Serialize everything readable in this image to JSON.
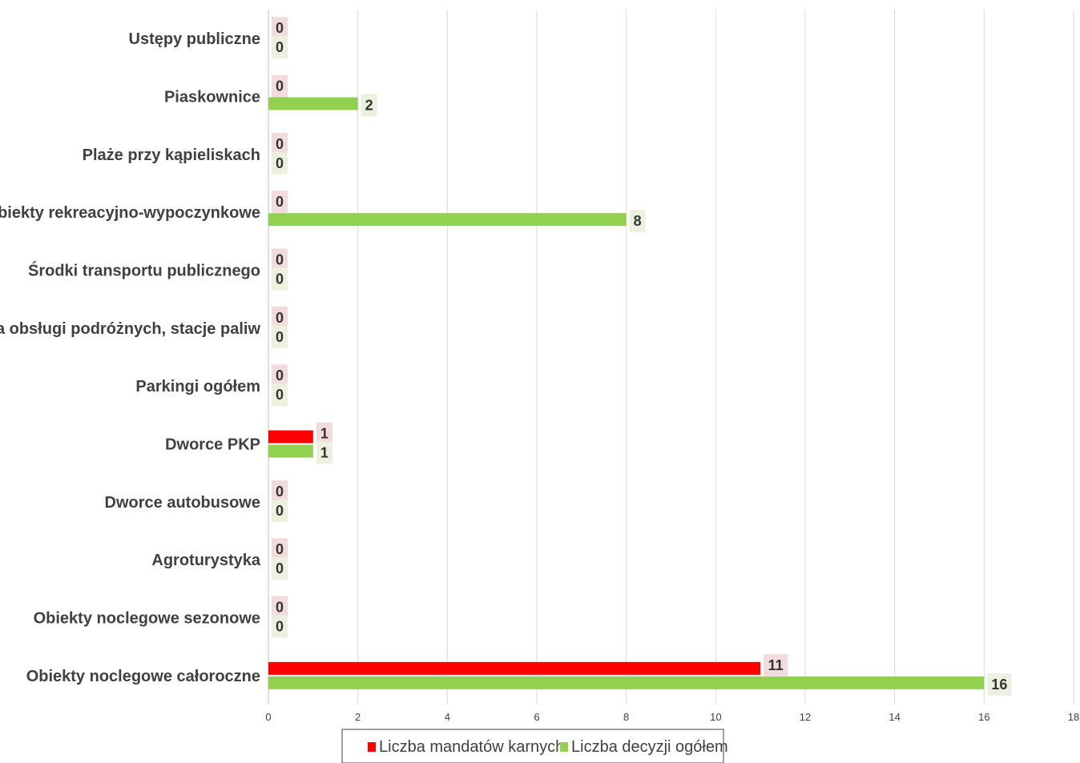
{
  "chart_data": {
    "type": "bar",
    "orientation": "horizontal",
    "categories": [
      "Ustępy publiczne",
      "Piaskownice",
      "Plaże przy kąpieliskach",
      "Obiekty rekreacyjno-wypoczynkowe",
      "Środki transportu publicznego",
      "Miejsca obsługi podróżnych, stacje paliw",
      "Parkingi ogółem",
      "Dworce PKP",
      "Dworce autobusowe",
      "Agroturystyka",
      "Obiekty noclegowe sezonowe",
      "Obiekty noclegowe całoroczne"
    ],
    "series": [
      {
        "name": "Liczba mandatów karnych",
        "color": "#ff0000",
        "label_bg": "#f2dcdb",
        "values": [
          0,
          0,
          0,
          0,
          0,
          0,
          0,
          1,
          0,
          0,
          0,
          11
        ]
      },
      {
        "name": "Liczba decyzji ogółem",
        "color": "#92d050",
        "label_bg": "#ebf1de",
        "values": [
          0,
          2,
          0,
          8,
          0,
          0,
          0,
          1,
          0,
          0,
          0,
          16
        ]
      }
    ],
    "xlim": [
      0,
      18
    ],
    "xticks": [
      0,
      2,
      4,
      6,
      8,
      10,
      12,
      14,
      16,
      18
    ],
    "grid": true,
    "legend_position": "bottom",
    "title": "",
    "xlabel": "",
    "ylabel": ""
  }
}
